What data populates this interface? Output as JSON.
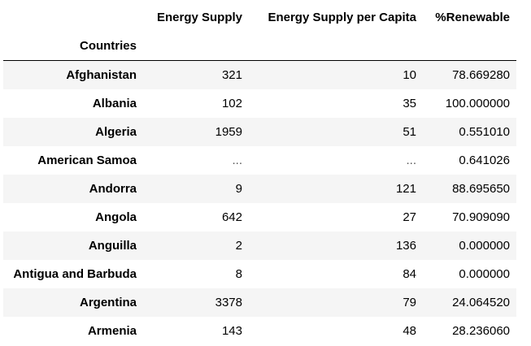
{
  "table": {
    "index_name": "Countries",
    "columns": [
      "Energy Supply",
      "Energy Supply per Capita",
      "%Renewable"
    ],
    "rows": [
      {
        "country": "Afghanistan",
        "energy_supply": "321",
        "energy_supply_per_capita": "10",
        "renewable": "78.669280"
      },
      {
        "country": "Albania",
        "energy_supply": "102",
        "energy_supply_per_capita": "35",
        "renewable": "100.000000"
      },
      {
        "country": "Algeria",
        "energy_supply": "1959",
        "energy_supply_per_capita": "51",
        "renewable": "0.551010"
      },
      {
        "country": "American Samoa",
        "energy_supply": "...",
        "energy_supply_per_capita": "...",
        "renewable": "0.641026"
      },
      {
        "country": "Andorra",
        "energy_supply": "9",
        "energy_supply_per_capita": "121",
        "renewable": "88.695650"
      },
      {
        "country": "Angola",
        "energy_supply": "642",
        "energy_supply_per_capita": "27",
        "renewable": "70.909090"
      },
      {
        "country": "Anguilla",
        "energy_supply": "2",
        "energy_supply_per_capita": "136",
        "renewable": "0.000000"
      },
      {
        "country": "Antigua and Barbuda",
        "energy_supply": "8",
        "energy_supply_per_capita": "84",
        "renewable": "0.000000"
      },
      {
        "country": "Argentina",
        "energy_supply": "3378",
        "energy_supply_per_capita": "79",
        "renewable": "24.064520"
      },
      {
        "country": "Armenia",
        "energy_supply": "143",
        "energy_supply_per_capita": "48",
        "renewable": "28.236060"
      }
    ]
  },
  "colors": {
    "stripe": "#f5f5f5",
    "header_rule": "#000000",
    "text": "#000000",
    "missing_text": "#555555"
  }
}
